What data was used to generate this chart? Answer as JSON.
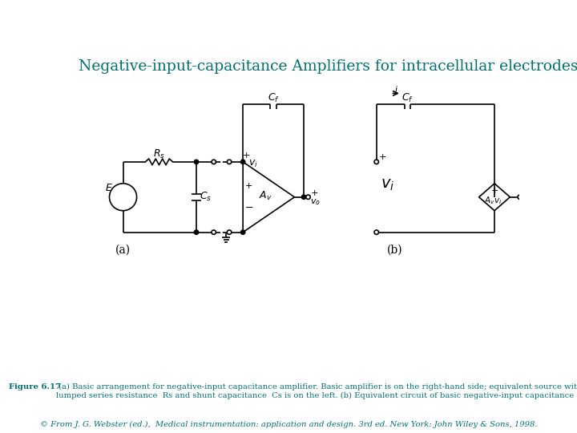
{
  "title": "Negative-input-capacitance Amplifiers for intracellular electrodes (cont.)",
  "title_color": "#007070",
  "title_fontsize": 13.5,
  "background_color": "#ffffff",
  "line_color": "#000000",
  "caption_bold": "Figure 6.17",
  "caption_text": " (a) Basic arrangement for negative-input capacitance amplifier. Basic amplifier is on the right-hand side; equivalent source with\nlumped series resistance  Rs and shunt capacitance  Cs is on the left. (b) Equivalent circuit of basic negative-input capacitance amplifier.",
  "caption_italic": "© From J. G. Webster (ed.),  Medical instrumentation: application and design. 3rd ed. New York: John Wiley & Sons, 1998.",
  "caption_color": "#007070",
  "label_a": "(a)",
  "label_b": "(b)"
}
